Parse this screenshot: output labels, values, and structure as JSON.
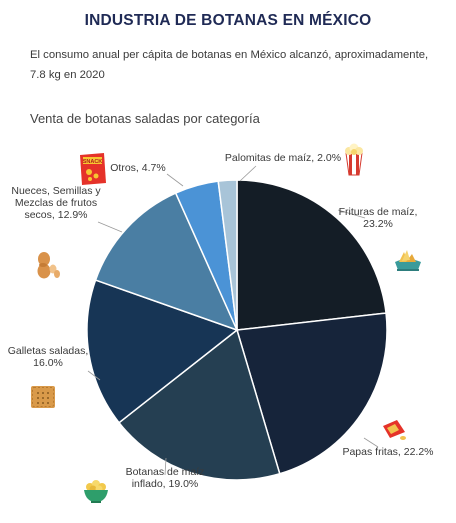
{
  "header": {
    "title": "INDUSTRIA DE BOTANAS EN MÉXICO",
    "subtitle_line1": "El consumo anual per cápita de botanas en México alcanzó, aproximadamente,",
    "subtitle_line2": "7.8 kg en 2020"
  },
  "chart_data": {
    "type": "pie",
    "title": "Venta de botanas saladas por categoría",
    "slices": [
      {
        "name": "Frituras de maíz",
        "value": 23.2,
        "color": "#141d26",
        "label_lines": [
          "Frituras de maíz,",
          "23.2%"
        ],
        "icon": "corn-chips-icon"
      },
      {
        "name": "Papas fritas",
        "value": 22.2,
        "color": "#16243a",
        "label_lines": [
          "Papas fritas, 22.2%"
        ],
        "icon": "chips-bag-icon"
      },
      {
        "name": "Botanas de maíz inflado",
        "value": 19.0,
        "color": "#253f52",
        "label_lines": [
          "Botanas de maíz",
          "inflado, 19.0%"
        ],
        "icon": "puffed-corn-bowl-icon"
      },
      {
        "name": "Galletas saladas",
        "value": 16.0,
        "color": "#173555",
        "label_lines": [
          "Galletas saladas,",
          "16.0%"
        ],
        "icon": "cracker-icon"
      },
      {
        "name": "Nueces, Semillas y Mezclas de frutos secos",
        "value": 12.9,
        "color": "#4a7ea3",
        "label_lines": [
          "Nueces, Semillas y",
          "Mezclas de frutos",
          "secos, 12.9%"
        ],
        "icon": "peanut-icon"
      },
      {
        "name": "Otros",
        "value": 4.7,
        "color": "#4b93d6",
        "label_lines": [
          "Otros, 4.7%"
        ],
        "icon": "snack-bag-icon",
        "icon_text": "SNACK"
      },
      {
        "name": "Palomitas de maíz",
        "value": 2.0,
        "color": "#a8c4d8",
        "label_lines": [
          "Palomitas de maíz, 2.0%"
        ],
        "icon": "popcorn-icon"
      }
    ]
  }
}
